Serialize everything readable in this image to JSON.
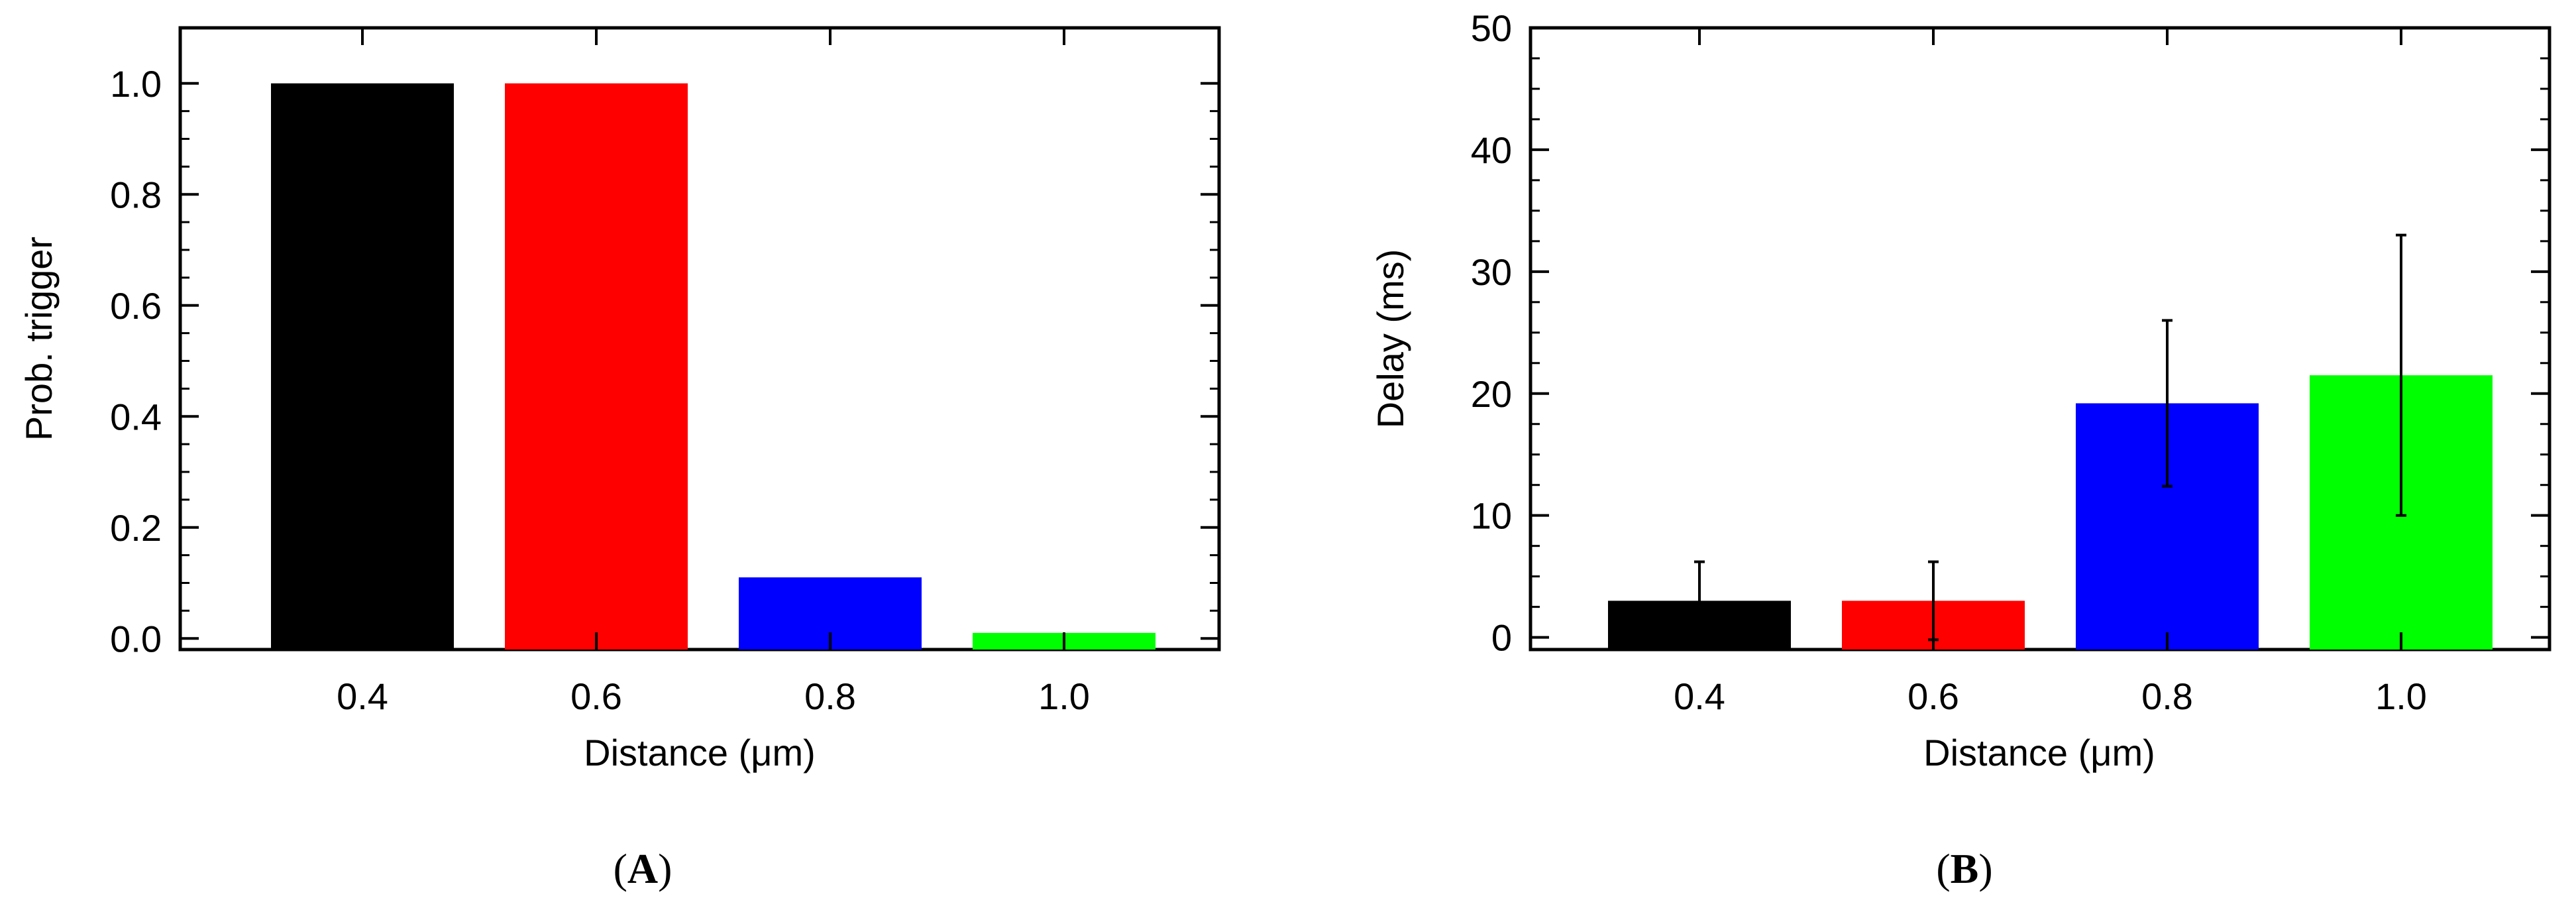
{
  "chart_data": [
    {
      "type": "bar",
      "panel_label": "A",
      "xlabel": "Distance (μm)",
      "ylabel": "Prob. trigger",
      "categories": [
        "0.4",
        "0.6",
        "0.8",
        "1.0"
      ],
      "values": [
        1.0,
        1.0,
        0.11,
        0.01
      ],
      "colors": [
        "#000000",
        "#ff0000",
        "#0000ff",
        "#00ff00"
      ],
      "ylim": [
        -0.02,
        1.1
      ],
      "yticks": [
        "0.0",
        "0.2",
        "0.4",
        "0.6",
        "0.8",
        "1.0"
      ],
      "grid": false
    },
    {
      "type": "bar",
      "panel_label": "B",
      "xlabel": "Distance (μm)",
      "ylabel": "Delay (ms)",
      "categories": [
        "0.4",
        "0.6",
        "0.8",
        "1.0"
      ],
      "values": [
        3.0,
        3.0,
        19.2,
        21.5
      ],
      "errors": [
        3.2,
        3.2,
        6.8,
        11.5
      ],
      "colors": [
        "#000000",
        "#ff0000",
        "#0000ff",
        "#00ff00"
      ],
      "ylim": [
        -1,
        50
      ],
      "yticks": [
        "0",
        "10",
        "20",
        "30",
        "40",
        "50"
      ],
      "grid": false
    }
  ]
}
